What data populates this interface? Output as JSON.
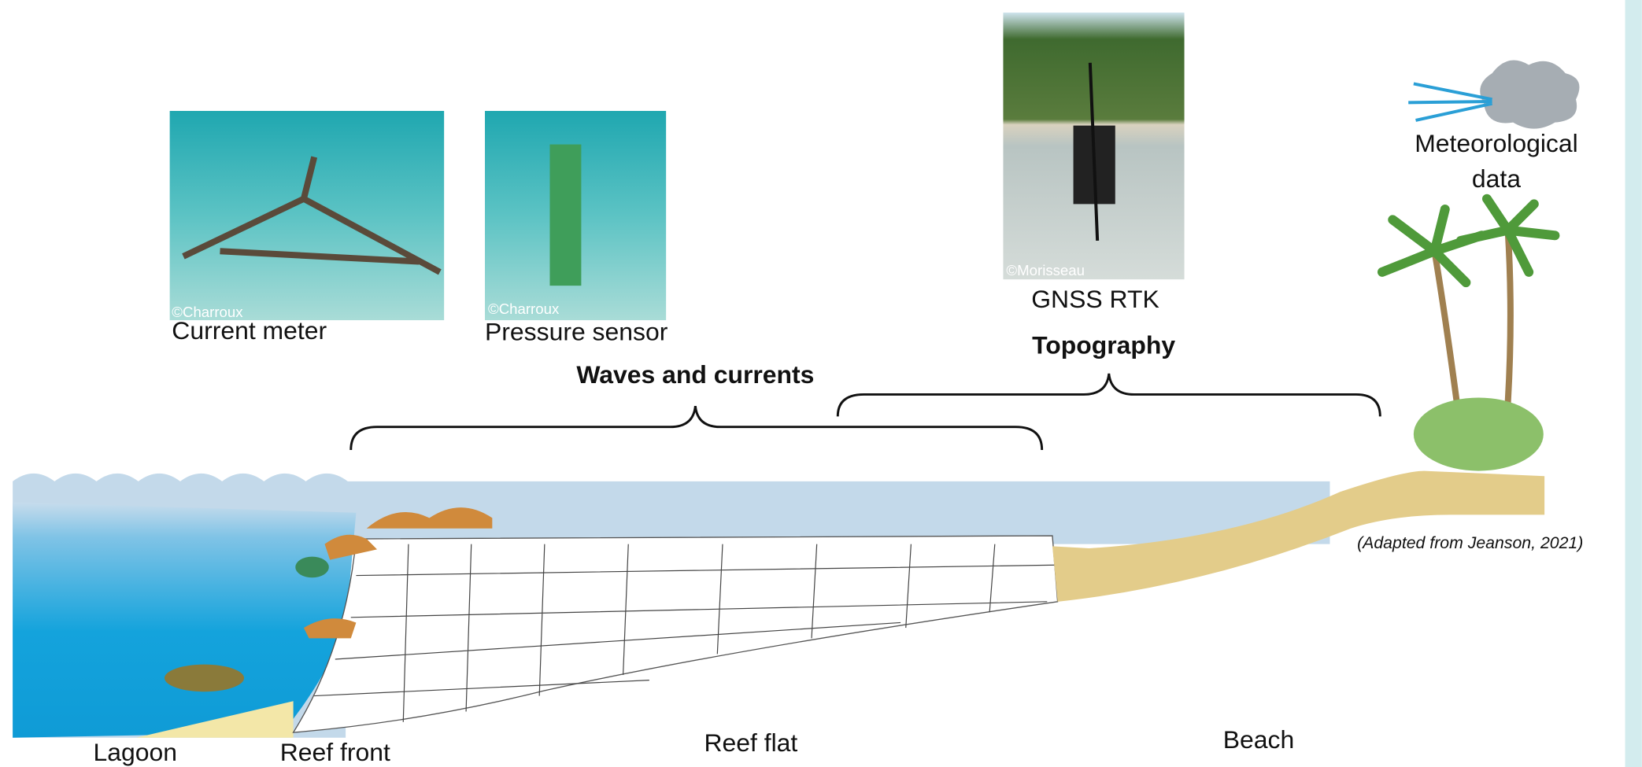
{
  "photos": [
    {
      "label": "Current meter",
      "credit": "©Charroux"
    },
    {
      "label": "Pressure sensor",
      "credit": "©Charroux"
    },
    {
      "label": "GNSS RTK",
      "credit": "©Morisseau"
    }
  ],
  "meteorological": [
    "Meteorological",
    "data"
  ],
  "groups": [
    "Waves and currents",
    "Topography"
  ],
  "zones": [
    "Lagoon",
    "Reef front",
    "Reef flat",
    "Beach"
  ],
  "note": "(Adapted from Jeanson, 2021)"
}
